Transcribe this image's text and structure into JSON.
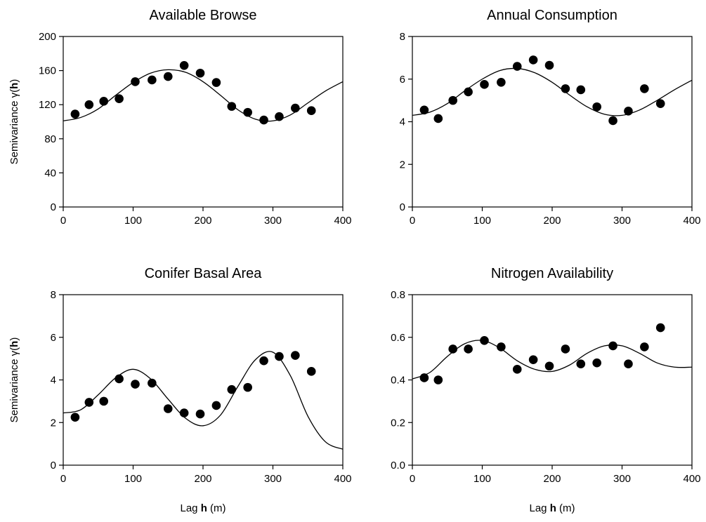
{
  "chart_data": [
    {
      "type": "scatter",
      "title": "Available Browse",
      "ylabel_text": "Semivariance γ(",
      "ylabel_bold": "h",
      "ylabel_end": ")",
      "xlabel_text": "",
      "xlabel_bold": "",
      "xlabel_end": "",
      "xlim": [
        0,
        400
      ],
      "ylim": [
        0,
        200
      ],
      "xticks": [
        0,
        100,
        200,
        300,
        400
      ],
      "yticks": [
        0,
        40,
        80,
        120,
        160,
        200
      ],
      "ytick_labels": [
        "0",
        "40",
        "80",
        "120",
        "160",
        "200"
      ],
      "points": {
        "x": [
          17,
          37,
          58,
          80,
          103,
          127,
          150,
          173,
          196,
          219,
          241,
          264,
          287,
          309,
          332,
          355
        ],
        "y": [
          109,
          120,
          124,
          127,
          147,
          149,
          153,
          166,
          157,
          146,
          118,
          111,
          102,
          106,
          116,
          113
        ]
      },
      "fit_curve": {
        "x": [
          0,
          25,
          50,
          75,
          100,
          125,
          150,
          175,
          200,
          225,
          250,
          275,
          300,
          325,
          350,
          375,
          400
        ],
        "y": [
          101,
          105,
          115,
          131,
          146,
          157,
          161,
          158,
          147,
          131,
          114,
          103,
          101,
          108,
          122,
          136,
          147
        ]
      }
    },
    {
      "type": "scatter",
      "title": "Annual Consumption",
      "ylabel_text": "",
      "ylabel_bold": "",
      "ylabel_end": "",
      "xlabel_text": "",
      "xlabel_bold": "",
      "xlabel_end": "",
      "xlim": [
        0,
        400
      ],
      "ylim": [
        0,
        8
      ],
      "xticks": [
        0,
        100,
        200,
        300,
        400
      ],
      "yticks": [
        0,
        2,
        4,
        6,
        8
      ],
      "ytick_labels": [
        "0",
        "2",
        "4",
        "6",
        "8"
      ],
      "points": {
        "x": [
          17,
          37,
          58,
          80,
          103,
          127,
          150,
          173,
          196,
          219,
          241,
          264,
          287,
          309,
          332,
          355
        ],
        "y": [
          4.55,
          4.15,
          5.0,
          5.4,
          5.75,
          5.85,
          6.6,
          6.9,
          6.65,
          5.55,
          5.5,
          4.7,
          4.05,
          4.5,
          5.55,
          4.85
        ]
      },
      "fit_curve": {
        "x": [
          0,
          25,
          50,
          75,
          100,
          125,
          150,
          175,
          200,
          225,
          250,
          275,
          300,
          325,
          350,
          375,
          400
        ],
        "y": [
          4.3,
          4.45,
          4.85,
          5.45,
          6.0,
          6.4,
          6.5,
          6.3,
          5.85,
          5.25,
          4.7,
          4.35,
          4.3,
          4.55,
          5.0,
          5.5,
          5.95
        ]
      }
    },
    {
      "type": "scatter",
      "title": "Conifer Basal Area",
      "ylabel_text": "Semivariance γ(",
      "ylabel_bold": "h",
      "ylabel_end": ")",
      "xlabel_text": "Lag ",
      "xlabel_bold": "h",
      "xlabel_end": " (m)",
      "xlim": [
        0,
        400
      ],
      "ylim": [
        0,
        8
      ],
      "xticks": [
        0,
        100,
        200,
        300,
        400
      ],
      "yticks": [
        0,
        2,
        4,
        6,
        8
      ],
      "ytick_labels": [
        "0",
        "2",
        "4",
        "6",
        "8"
      ],
      "points": {
        "x": [
          17,
          37,
          58,
          80,
          103,
          127,
          150,
          173,
          196,
          219,
          241,
          264,
          287,
          309,
          332,
          355
        ],
        "y": [
          2.25,
          2.95,
          3.0,
          4.05,
          3.8,
          3.85,
          2.65,
          2.45,
          2.4,
          2.8,
          3.55,
          3.65,
          4.9,
          5.1,
          5.15,
          4.4
        ]
      },
      "fit_curve": {
        "x": [
          0,
          25,
          50,
          75,
          100,
          125,
          150,
          175,
          200,
          225,
          250,
          275,
          300,
          325,
          350,
          375,
          400
        ],
        "y": [
          2.45,
          2.6,
          3.3,
          4.1,
          4.5,
          4.05,
          3.1,
          2.2,
          1.85,
          2.35,
          3.7,
          4.95,
          5.3,
          4.2,
          2.3,
          1.1,
          0.75
        ]
      }
    },
    {
      "type": "scatter",
      "title": "Nitrogen Availability",
      "ylabel_text": "",
      "ylabel_bold": "",
      "ylabel_end": "",
      "xlabel_text": "Lag ",
      "xlabel_bold": "h",
      "xlabel_end": " (m)",
      "xlim": [
        0,
        400
      ],
      "ylim": [
        0,
        0.8
      ],
      "xticks": [
        0,
        100,
        200,
        300,
        400
      ],
      "yticks": [
        0,
        0.2,
        0.4,
        0.6,
        0.8
      ],
      "ytick_labels": [
        "0.0",
        "0.2",
        "0.4",
        "0.6",
        "0.8"
      ],
      "points": {
        "x": [
          17,
          37,
          58,
          80,
          103,
          127,
          150,
          173,
          196,
          219,
          241,
          264,
          287,
          309,
          332,
          355
        ],
        "y": [
          0.41,
          0.4,
          0.545,
          0.545,
          0.585,
          0.555,
          0.45,
          0.495,
          0.465,
          0.545,
          0.475,
          0.48,
          0.56,
          0.475,
          0.555,
          0.645
        ]
      },
      "fit_curve": {
        "x": [
          0,
          25,
          50,
          75,
          100,
          125,
          150,
          175,
          200,
          225,
          250,
          275,
          300,
          325,
          350,
          375,
          400
        ],
        "y": [
          0.405,
          0.435,
          0.51,
          0.57,
          0.585,
          0.55,
          0.49,
          0.45,
          0.44,
          0.47,
          0.525,
          0.56,
          0.56,
          0.525,
          0.48,
          0.46,
          0.46
        ]
      }
    }
  ]
}
